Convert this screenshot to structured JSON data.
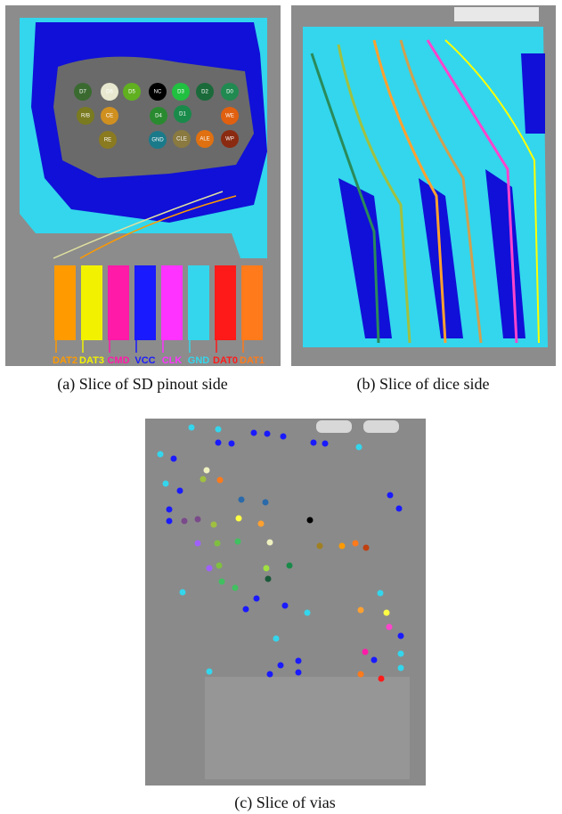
{
  "figure": {
    "panels": [
      {
        "caption": "(a) Slice of SD pinout side",
        "pins": [
          {
            "label": "DAT2",
            "color": "#ff9a00"
          },
          {
            "label": "DAT3",
            "color": "#f2f200"
          },
          {
            "label": "CMD",
            "color": "#ff1aa8"
          },
          {
            "label": "VCC",
            "color": "#1a1aff"
          },
          {
            "label": "CLK",
            "color": "#ff33ff"
          },
          {
            "label": "GND",
            "color": "#33d6ec"
          },
          {
            "label": "DAT0",
            "color": "#ff1a1a"
          },
          {
            "label": "DAT1",
            "color": "#ff7a1a"
          }
        ],
        "pads": [
          "D7",
          "D6",
          "D5",
          "NC",
          "D3",
          "D2",
          "D0",
          "R/B",
          "CE",
          "D4",
          "D1",
          "WE",
          "RE",
          "GND",
          "CLE",
          "ALE",
          "WP"
        ]
      },
      {
        "caption": "(b) Slice of dice side"
      },
      {
        "caption": "(c) Slice of vias"
      }
    ]
  }
}
